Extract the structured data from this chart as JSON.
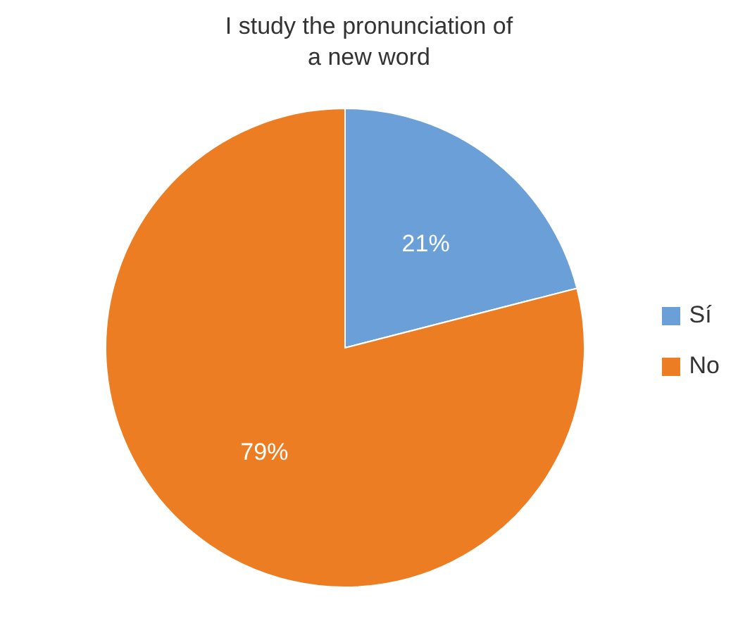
{
  "chart_data": {
    "type": "pie",
    "title": "I study the pronunciation of a new word",
    "categories": [
      "Sí",
      "No"
    ],
    "values": [
      21,
      79
    ],
    "colors": [
      "#6a9fd8",
      "#ec7d22"
    ],
    "value_labels": [
      "21%",
      "79%"
    ],
    "legend": "right"
  }
}
